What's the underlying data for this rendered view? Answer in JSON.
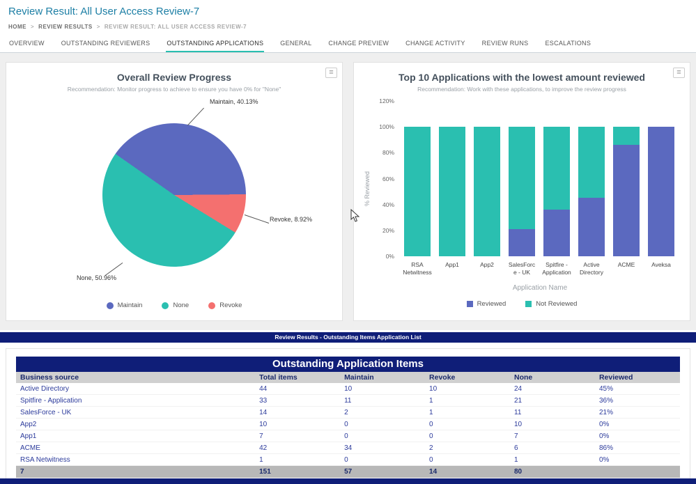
{
  "page": {
    "title": "Review Result: All User Access Review-7"
  },
  "breadcrumb": {
    "items": [
      "HOME",
      "REVIEW RESULTS",
      "REVIEW RESULT: ALL USER ACCESS REVIEW-7"
    ],
    "separator": ">"
  },
  "tabs": [
    {
      "label": "OVERVIEW",
      "active": false
    },
    {
      "label": "OUTSTANDING REVIEWERS",
      "active": false
    },
    {
      "label": "OUTSTANDING APPLICATIONS",
      "active": true
    },
    {
      "label": "GENERAL",
      "active": false
    },
    {
      "label": "CHANGE PREVIEW",
      "active": false
    },
    {
      "label": "CHANGE ACTIVITY",
      "active": false
    },
    {
      "label": "REVIEW RUNS",
      "active": false
    },
    {
      "label": "ESCALATIONS",
      "active": false
    }
  ],
  "colors": {
    "accent_title": "#1d7fa5",
    "purple": "#5b69bf",
    "teal": "#2abfb0",
    "salmon": "#f4706f",
    "navy": "#0f1e78"
  },
  "panel_menu_icon_glyph": "≡",
  "chart_data": [
    {
      "type": "pie",
      "title": "Overall Review Progress",
      "subtitle": "Recommendation: Monitor progress to achieve to ensure you have 0% for \"None\"",
      "start_angle": -55,
      "slices": [
        {
          "label": "Maintain",
          "value": 40.13,
          "color": "#5b69bf"
        },
        {
          "label": "Revoke",
          "value": 8.92,
          "color": "#f4706f"
        },
        {
          "label": "None",
          "value": 50.96,
          "color": "#2abfb0"
        }
      ],
      "legend": [
        "Maintain",
        "None",
        "Revoke"
      ],
      "legend_position": "bottom"
    },
    {
      "type": "bar",
      "stacked": true,
      "title": "Top 10 Applications with the lowest amount reviewed",
      "subtitle": "Recommendation: Work with these applications, to improve the review progress",
      "categories": [
        "RSA Netwitness",
        "App1",
        "App2",
        "SalesForce - UK",
        "Spitfire - Application",
        "Active Directory",
        "ACME",
        "Aveksa"
      ],
      "series": [
        {
          "name": "Reviewed",
          "color": "#5b69bf",
          "values": [
            0,
            0,
            0,
            21,
            36,
            45,
            86,
            100
          ]
        },
        {
          "name": "Not Reviewed",
          "color": "#2abfb0",
          "values": [
            100,
            100,
            100,
            79,
            64,
            55,
            14,
            0
          ]
        }
      ],
      "xlabel": "Application Name",
      "ylabel": "% Reviewed",
      "ylim": [
        0,
        120
      ],
      "yticks": [
        "0%",
        "20%",
        "40%",
        "60%",
        "80%",
        "100%",
        "120%"
      ],
      "grid": false,
      "legend_position": "bottom"
    }
  ],
  "section_strip": {
    "label": "Review Results - Outstanding Items Application List"
  },
  "table": {
    "title": "Outstanding Application Items",
    "columns": [
      "Business source",
      "Total items",
      "Maintain",
      "Revoke",
      "None",
      "Reviewed"
    ],
    "rows": [
      [
        "Active Directory",
        "44",
        "10",
        "10",
        "24",
        "45%"
      ],
      [
        "Spitfire - Application",
        "33",
        "11",
        "1",
        "21",
        "36%"
      ],
      [
        "SalesForce - UK",
        "14",
        "2",
        "1",
        "11",
        "21%"
      ],
      [
        "App2",
        "10",
        "0",
        "0",
        "10",
        "0%"
      ],
      [
        "App1",
        "7",
        "0",
        "0",
        "7",
        "0%"
      ],
      [
        "ACME",
        "42",
        "34",
        "2",
        "6",
        "86%"
      ],
      [
        "RSA Netwitness",
        "1",
        "0",
        "0",
        "1",
        "0%"
      ]
    ],
    "footer": [
      "7",
      "151",
      "57",
      "14",
      "80",
      ""
    ]
  }
}
